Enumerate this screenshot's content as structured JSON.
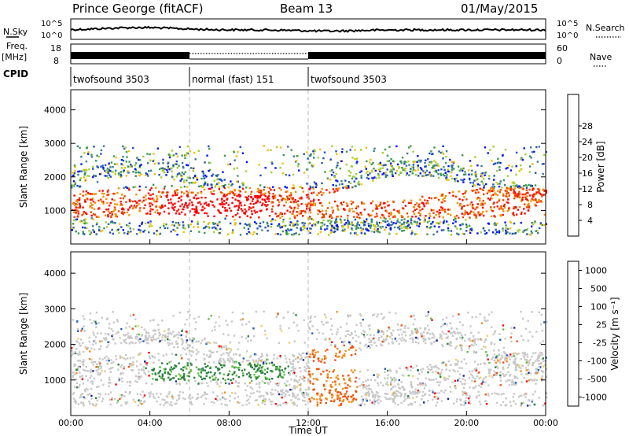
{
  "header": {
    "station": "Prince George (fitACF)",
    "beam": "Beam 13",
    "date": "01/May/2015"
  },
  "noise_panel": {
    "left_label": "N.Sky",
    "right_label": "N.Search",
    "ticks": [
      "10^5",
      "10^0"
    ]
  },
  "freq_panel": {
    "left_label_1": "Freq.",
    "left_label_2": "[MHz]",
    "left_ticks": [
      "18",
      "8"
    ],
    "right_ticks": [
      "60",
      "0"
    ],
    "right_label": "Nave"
  },
  "cpid_panel": {
    "label": "CPID",
    "segments": [
      {
        "start_hour": 0,
        "end_hour": 6,
        "name": "twofsound 3503"
      },
      {
        "start_hour": 6,
        "end_hour": 12,
        "name": "normal (fast) 151"
      },
      {
        "start_hour": 12,
        "end_hour": 24,
        "name": "twofsound 3503"
      }
    ]
  },
  "chart_data": [
    {
      "type": "heatmap",
      "name": "power",
      "ylabel": "Slant Range [km]",
      "yticks": [
        "1000",
        "2000",
        "3000",
        "4000"
      ],
      "colorbar_label": "Power [dB]",
      "colorbar_ticks": [
        "4",
        "8",
        "12",
        "16",
        "20",
        "24",
        "28"
      ],
      "colorbar_colors": [
        "#0010ff",
        "#2050c0",
        "#3a7a90",
        "#3a9a50",
        "#a0d030",
        "#f0c000",
        "#f09000",
        "#f04000",
        "#ff0000"
      ]
    },
    {
      "type": "heatmap",
      "name": "velocity",
      "ylabel": "Slant Range [km]",
      "yticks": [
        "1000",
        "2000",
        "3000",
        "4000"
      ],
      "colorbar_label": "Velocity [m s⁻¹]",
      "colorbar_ticks": [
        "1000",
        "500",
        "100",
        "25",
        "-25",
        "-100",
        "-500",
        "-1000"
      ],
      "colorbar_colors": [
        "#1a2aa0",
        "#2060c0",
        "#2a8040",
        "#60c040",
        "#c8c8c8",
        "#f0d060",
        "#f09020",
        "#f05010",
        "#ff0000"
      ]
    }
  ],
  "x_axis": {
    "label": "Time UT",
    "ticks": [
      "00:00",
      "04:00",
      "08:00",
      "12:00",
      "16:00",
      "20:00",
      "00:00"
    ]
  }
}
